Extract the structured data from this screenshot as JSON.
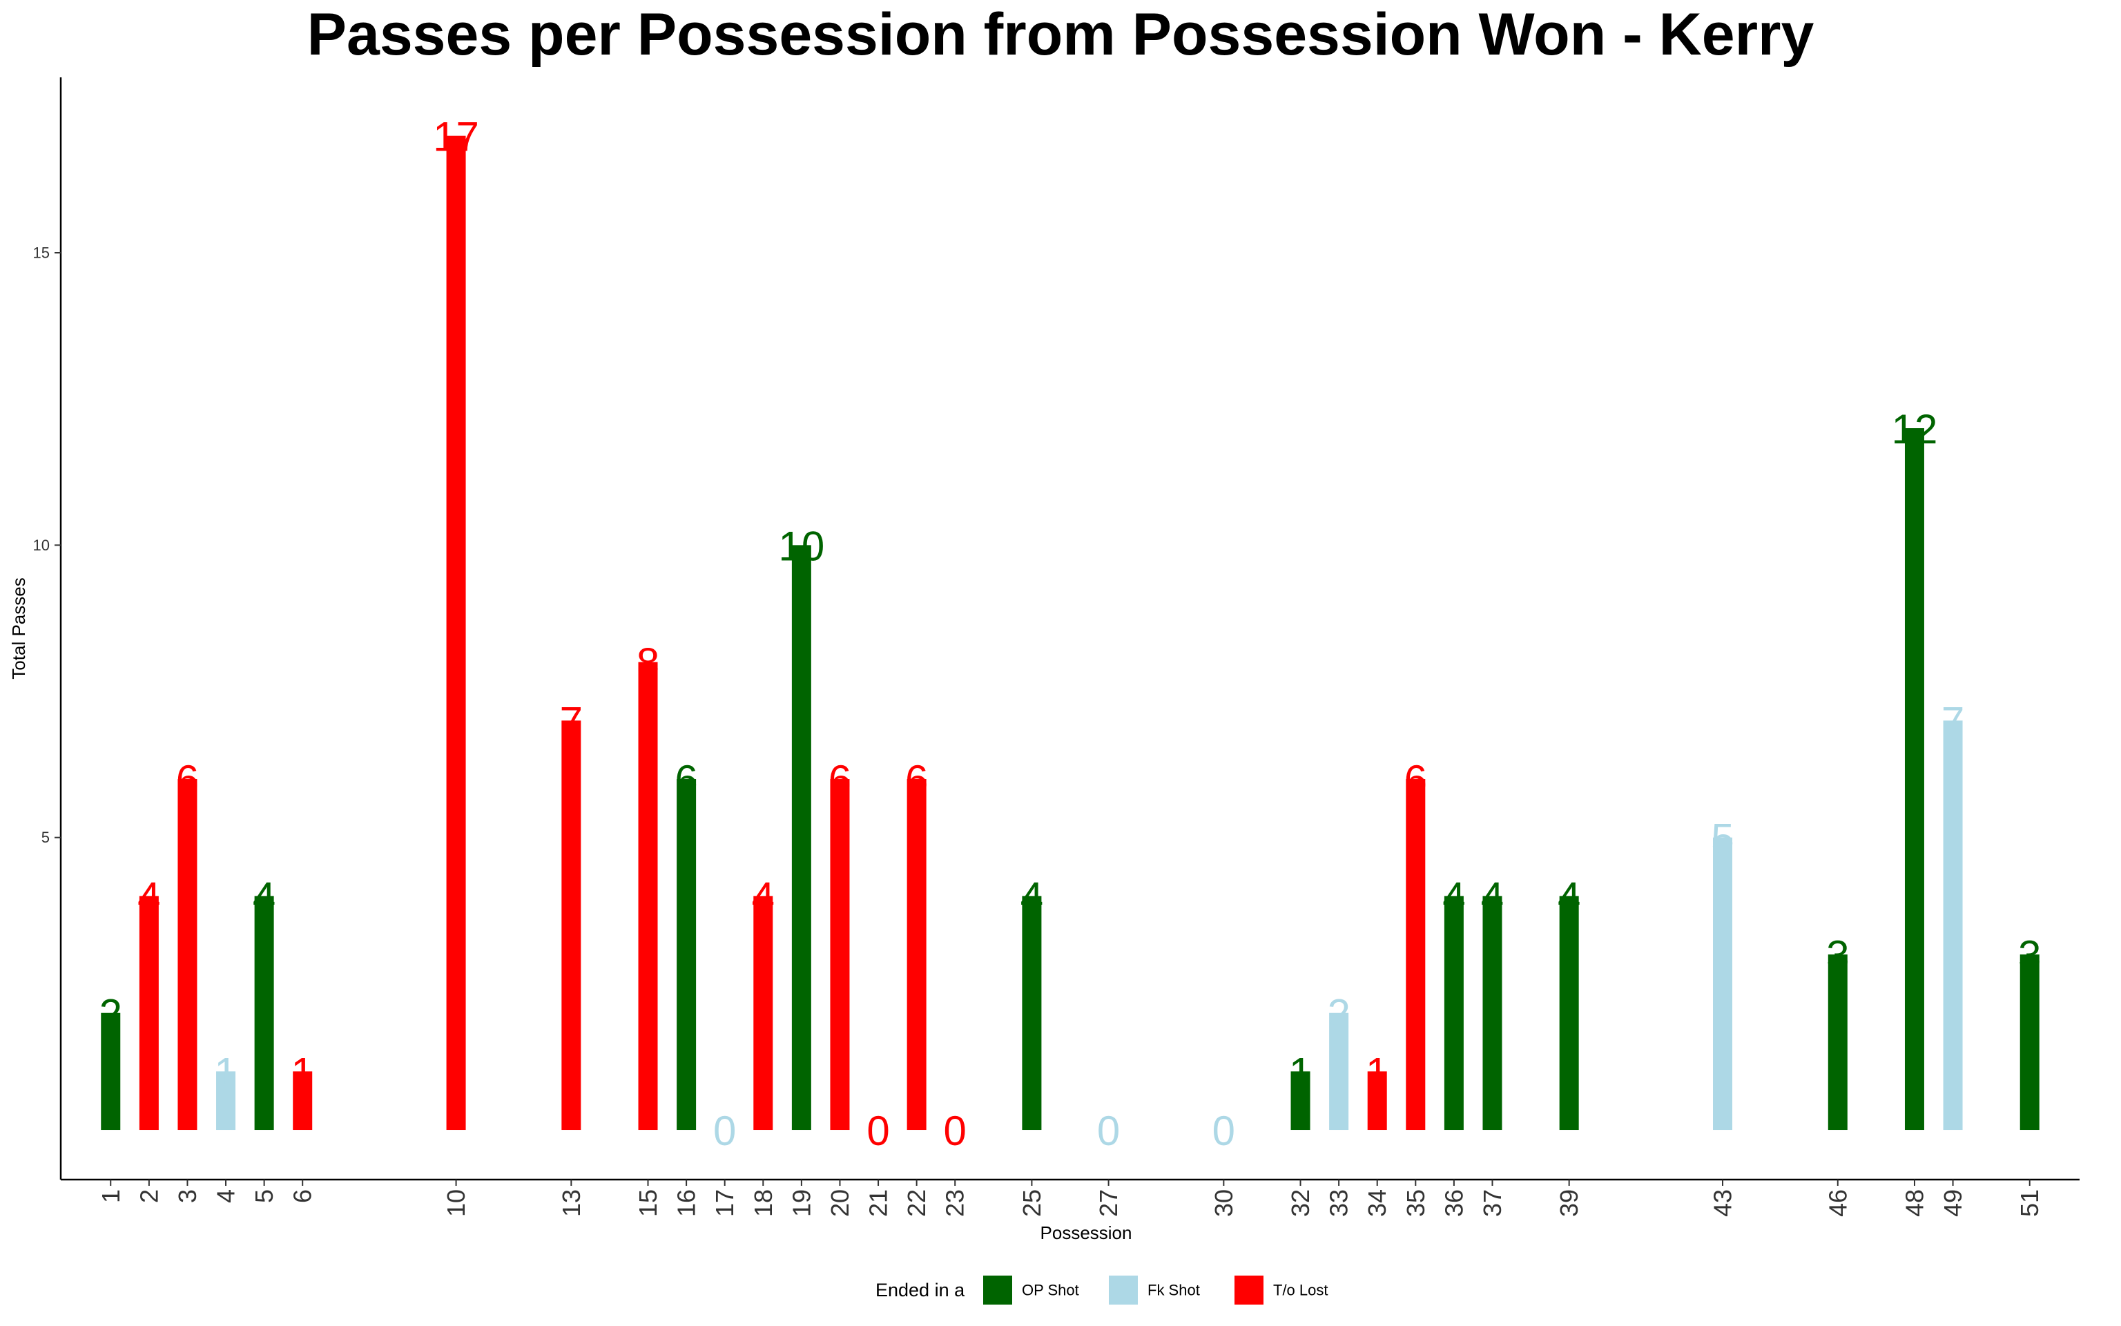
{
  "chart_data": {
    "type": "bar",
    "title": "Passes per Possession from Possession Won - Kerry",
    "xlabel": "Possession",
    "ylabel": "Total Passes",
    "ylim": [
      -0.85,
      18
    ],
    "xlim": [
      -0.3,
      52.3
    ],
    "yticks": [
      5,
      10,
      15
    ],
    "grid": false,
    "legend": {
      "title": "Ended in a",
      "position": "bottom",
      "entries": [
        {
          "key": "op",
          "label": "OP Shot",
          "color": "#006400"
        },
        {
          "key": "fk",
          "label": "Fk Shot",
          "color": "#ADD8E6"
        },
        {
          "key": "to",
          "label": "T/o Lost",
          "color": "#FF0000"
        }
      ]
    },
    "bars": [
      {
        "x": 1,
        "value": 2,
        "outcome": "op"
      },
      {
        "x": 2,
        "value": 4,
        "outcome": "to"
      },
      {
        "x": 3,
        "value": 6,
        "outcome": "to"
      },
      {
        "x": 4,
        "value": 1,
        "outcome": "fk"
      },
      {
        "x": 5,
        "value": 4,
        "outcome": "op"
      },
      {
        "x": 6,
        "value": 1,
        "outcome": "to"
      },
      {
        "x": 10,
        "value": 17,
        "outcome": "to"
      },
      {
        "x": 13,
        "value": 7,
        "outcome": "to"
      },
      {
        "x": 15,
        "value": 8,
        "outcome": "to"
      },
      {
        "x": 16,
        "value": 6,
        "outcome": "op"
      },
      {
        "x": 17,
        "value": 0,
        "outcome": "fk"
      },
      {
        "x": 18,
        "value": 4,
        "outcome": "to"
      },
      {
        "x": 19,
        "value": 10,
        "outcome": "op"
      },
      {
        "x": 20,
        "value": 6,
        "outcome": "to"
      },
      {
        "x": 21,
        "value": 0,
        "outcome": "to"
      },
      {
        "x": 22,
        "value": 6,
        "outcome": "to"
      },
      {
        "x": 23,
        "value": 0,
        "outcome": "to"
      },
      {
        "x": 25,
        "value": 4,
        "outcome": "op"
      },
      {
        "x": 27,
        "value": 0,
        "outcome": "fk"
      },
      {
        "x": 30,
        "value": 0,
        "outcome": "fk"
      },
      {
        "x": 32,
        "value": 1,
        "outcome": "op"
      },
      {
        "x": 33,
        "value": 2,
        "outcome": "fk"
      },
      {
        "x": 34,
        "value": 1,
        "outcome": "to"
      },
      {
        "x": 35,
        "value": 6,
        "outcome": "to"
      },
      {
        "x": 36,
        "value": 4,
        "outcome": "op"
      },
      {
        "x": 37,
        "value": 4,
        "outcome": "op"
      },
      {
        "x": 39,
        "value": 4,
        "outcome": "op"
      },
      {
        "x": 43,
        "value": 5,
        "outcome": "fk"
      },
      {
        "x": 46,
        "value": 3,
        "outcome": "op"
      },
      {
        "x": 48,
        "value": 12,
        "outcome": "op"
      },
      {
        "x": 49,
        "value": 7,
        "outcome": "fk"
      },
      {
        "x": 51,
        "value": 3,
        "outcome": "op"
      }
    ]
  }
}
